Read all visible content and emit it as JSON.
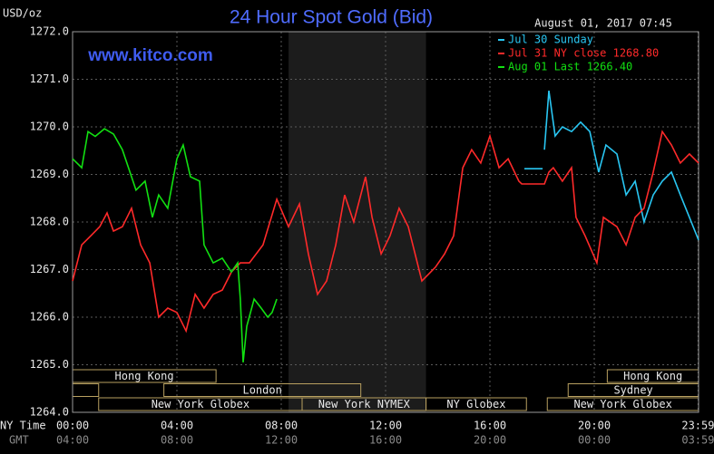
{
  "chart_data": {
    "type": "line",
    "title": "24 Hour Spot Gold (Bid)",
    "timestamp": "August 01, 2017 07:45",
    "watermark": "www.kitco.com",
    "y_label": "USD/oz",
    "x_label": "NY Time",
    "x2_label": "GMT",
    "xlim": [
      0,
      24
    ],
    "ylim": [
      1264,
      1272
    ],
    "yticks": [
      {
        "value": 1264,
        "label": "1264.0"
      },
      {
        "value": 1265,
        "label": "1265.0"
      },
      {
        "value": 1266,
        "label": "1266.0"
      },
      {
        "value": 1267,
        "label": "1267.0"
      },
      {
        "value": 1268,
        "label": "1268.0"
      },
      {
        "value": 1269,
        "label": "1269.0"
      },
      {
        "value": 1270,
        "label": "1270.0"
      },
      {
        "value": 1271,
        "label": "1271.0"
      },
      {
        "value": 1272,
        "label": "1272.0"
      }
    ],
    "xticks": [
      {
        "value": 0,
        "label": "00:00"
      },
      {
        "value": 4,
        "label": "04:00"
      },
      {
        "value": 8,
        "label": "08:00"
      },
      {
        "value": 12,
        "label": "12:00"
      },
      {
        "value": 16,
        "label": "16:00"
      },
      {
        "value": 20,
        "label": "20:00"
      },
      {
        "value": 23.98,
        "label": "23:59"
      }
    ],
    "x2ticks": [
      {
        "value": 0,
        "label": "04:00"
      },
      {
        "value": 4,
        "label": "08:00"
      },
      {
        "value": 8,
        "label": "12:00"
      },
      {
        "value": 12,
        "label": "16:00"
      },
      {
        "value": 16,
        "label": "20:00"
      },
      {
        "value": 20,
        "label": "00:00"
      },
      {
        "value": 23.98,
        "label": "03:59"
      }
    ],
    "grid": true,
    "shaded_range": [
      8.28,
      13.55
    ],
    "sessions": [
      [
        {
          "label": "Hong Kong",
          "start": 0,
          "end": 5.5
        },
        {
          "label": "Hong Kong",
          "start": 20.5,
          "end": 24
        }
      ],
      [
        {
          "label": null,
          "start": 0,
          "end": 1
        },
        {
          "label": "London",
          "start": 3.5,
          "end": 11.05
        },
        {
          "label": "Sydney",
          "start": 19,
          "end": 24
        }
      ],
      [
        {
          "label": "New York Globex",
          "start": 1,
          "end": 8.8
        },
        {
          "label": "New York NYMEX",
          "start": 8.8,
          "end": 13.55
        },
        {
          "label": "NY Globex",
          "start": 13.55,
          "end": 17.4
        },
        {
          "label": "New York Globex",
          "start": 18.2,
          "end": 24
        }
      ]
    ],
    "series": [
      {
        "name": "Jul 30 Sunday",
        "color": "#29c6f2",
        "x": [
          17.32,
          18.02,
          null,
          18.09,
          18.26,
          18.5,
          18.78,
          19.13,
          19.48,
          19.83,
          20.17,
          20.45,
          20.87,
          21.22,
          21.57,
          21.91,
          22.26,
          22.61,
          22.96,
          23.3,
          23.65,
          24
        ],
        "values": [
          1269.12,
          1269.12,
          null,
          1269.52,
          1270.76,
          1269.81,
          1270.0,
          1269.9,
          1270.1,
          1269.9,
          1269.05,
          1269.62,
          1269.43,
          1268.57,
          1268.86,
          1268.0,
          1268.57,
          1268.86,
          1269.05,
          1268.57,
          1268.1,
          1267.62
        ]
      },
      {
        "name": "Jul 31 NY close 1268.80",
        "color": "#ff2a2a",
        "x": [
          0,
          0.35,
          0.7,
          1.04,
          1.32,
          1.57,
          1.91,
          2.26,
          2.61,
          2.96,
          3.3,
          3.65,
          4.0,
          4.35,
          4.7,
          5.04,
          5.39,
          5.74,
          6.09,
          6.43,
          6.78,
          7.3,
          7.83,
          8.28,
          8.7,
          9.04,
          9.39,
          9.74,
          10.09,
          10.43,
          10.78,
          11.23,
          11.48,
          11.83,
          12.17,
          12.52,
          12.87,
          13.39,
          13.91,
          14.26,
          14.61,
          14.96,
          15.3,
          15.65,
          16.0,
          16.35,
          16.7,
          17.11,
          17.22,
          18.09,
          18.26,
          18.43,
          18.78,
          19.13,
          19.3,
          19.65,
          20.1,
          20.35,
          20.87,
          21.22,
          21.57,
          21.91,
          22.26,
          22.61,
          22.96,
          23.3,
          23.65,
          24
        ],
        "values": [
          1266.76,
          1267.52,
          1267.71,
          1267.9,
          1268.19,
          1267.81,
          1267.9,
          1268.29,
          1267.52,
          1267.14,
          1266.0,
          1266.19,
          1266.1,
          1265.71,
          1266.48,
          1266.19,
          1266.48,
          1266.57,
          1266.95,
          1267.14,
          1267.14,
          1267.52,
          1268.48,
          1267.9,
          1268.38,
          1267.33,
          1266.48,
          1266.76,
          1267.52,
          1268.57,
          1268.0,
          1268.95,
          1268.1,
          1267.33,
          1267.71,
          1268.29,
          1267.9,
          1266.76,
          1267.05,
          1267.33,
          1267.71,
          1269.14,
          1269.52,
          1269.24,
          1269.81,
          1269.14,
          1269.33,
          1268.86,
          1268.8,
          1268.8,
          1269.05,
          1269.14,
          1268.86,
          1269.14,
          1268.1,
          1267.71,
          1267.14,
          1268.1,
          1267.9,
          1267.52,
          1268.1,
          1268.29,
          1269.05,
          1269.9,
          1269.62,
          1269.24,
          1269.43,
          1269.24
        ]
      },
      {
        "name": "Aug 01 Last 1266.40",
        "color": "#12e012",
        "x": [
          0,
          0.35,
          0.59,
          0.87,
          1.22,
          1.57,
          1.91,
          2.26,
          2.43,
          2.78,
          3.06,
          3.3,
          3.65,
          4.0,
          4.24,
          4.52,
          4.87,
          5.04,
          5.39,
          5.74,
          6.09,
          6.33,
          6.43,
          6.54,
          6.68,
          6.96,
          7.23,
          7.48,
          7.65,
          7.83
        ],
        "values": [
          1269.33,
          1269.14,
          1269.9,
          1269.8,
          1269.96,
          1269.85,
          1269.52,
          1268.95,
          1268.67,
          1268.86,
          1268.1,
          1268.57,
          1268.29,
          1269.33,
          1269.62,
          1268.95,
          1268.86,
          1267.52,
          1267.14,
          1267.24,
          1266.95,
          1267.14,
          1266.38,
          1265.05,
          1265.81,
          1266.38,
          1266.19,
          1266.0,
          1266.1,
          1266.38
        ]
      }
    ]
  }
}
